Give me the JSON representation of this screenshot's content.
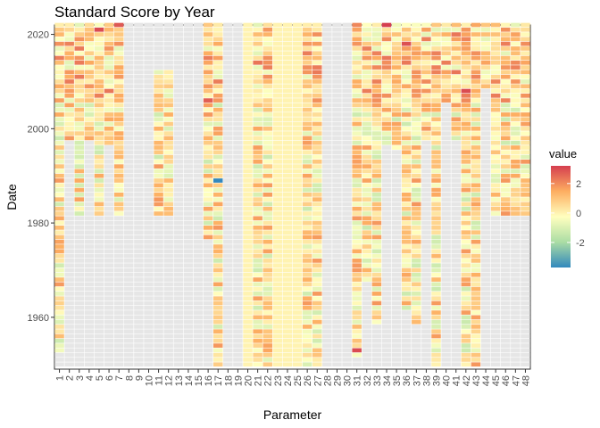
{
  "chart_data": {
    "type": "heatmap",
    "title": "Standard Score by Year",
    "xlabel": "Parameter",
    "ylabel": "Date",
    "x_categories": [
      "1",
      "2",
      "3",
      "4",
      "5",
      "6",
      "7",
      "8",
      "9",
      "10",
      "11",
      "12",
      "13",
      "14",
      "15",
      "16",
      "17",
      "18",
      "19",
      "20",
      "21",
      "22",
      "23",
      "24",
      "25",
      "26",
      "27",
      "28",
      "29",
      "30",
      "31",
      "32",
      "33",
      "34",
      "35",
      "36",
      "37",
      "38",
      "39",
      "40",
      "41",
      "42",
      "43",
      "44",
      "45",
      "46",
      "47",
      "48"
    ],
    "y_ticks": [
      1960,
      1980,
      2000,
      2020
    ],
    "ylim": [
      1949,
      2022
    ],
    "missing_color": "#e6e6e6",
    "colorscale": [
      "#3288bd",
      "#abdda4",
      "#ffffbf",
      "#fdae61",
      "#d53e4f"
    ],
    "colorscale_name": "Spectral (reversed)",
    "value_range": [
      -3.7,
      3.2
    ],
    "legend": {
      "title": "value",
      "ticks": [
        2,
        0,
        -2
      ],
      "position": "right"
    },
    "parameter_coverage": [
      {
        "parameter": "1",
        "start_year": 1953,
        "end_year": 2022
      },
      {
        "parameter": "2",
        "start_year": 1998,
        "end_year": 2022
      },
      {
        "parameter": "3",
        "start_year": 1982,
        "end_year": 2022
      },
      {
        "parameter": "4",
        "start_year": 1998,
        "end_year": 2022
      },
      {
        "parameter": "5",
        "start_year": 1982,
        "end_year": 2022
      },
      {
        "parameter": "6",
        "start_year": 1997,
        "end_year": 2022
      },
      {
        "parameter": "7",
        "start_year": 1982,
        "end_year": 2022
      },
      {
        "parameter": "8",
        "start_year": null,
        "end_year": null
      },
      {
        "parameter": "9",
        "start_year": null,
        "end_year": null
      },
      {
        "parameter": "10",
        "start_year": null,
        "end_year": null
      },
      {
        "parameter": "11",
        "start_year": 1982,
        "end_year": 2012
      },
      {
        "parameter": "12",
        "start_year": 1982,
        "end_year": 2012
      },
      {
        "parameter": "13",
        "start_year": null,
        "end_year": null
      },
      {
        "parameter": "14",
        "start_year": null,
        "end_year": null
      },
      {
        "parameter": "15",
        "start_year": null,
        "end_year": null
      },
      {
        "parameter": "16",
        "start_year": 1977,
        "end_year": 2022
      },
      {
        "parameter": "17",
        "start_year": 1950,
        "end_year": 2022
      },
      {
        "parameter": "18",
        "start_year": null,
        "end_year": null
      },
      {
        "parameter": "19",
        "start_year": null,
        "end_year": null
      },
      {
        "parameter": "20",
        "start_year": 1950,
        "end_year": 2022
      },
      {
        "parameter": "21",
        "start_year": 1950,
        "end_year": 2022
      },
      {
        "parameter": "22",
        "start_year": 1950,
        "end_year": 2022
      },
      {
        "parameter": "23",
        "start_year": 1950,
        "end_year": 2022
      },
      {
        "parameter": "24",
        "start_year": 1950,
        "end_year": 2022
      },
      {
        "parameter": "25",
        "start_year": 1950,
        "end_year": 2022
      },
      {
        "parameter": "26",
        "start_year": 1950,
        "end_year": 2022
      },
      {
        "parameter": "27",
        "start_year": 1950,
        "end_year": 2022
      },
      {
        "parameter": "28",
        "start_year": null,
        "end_year": null
      },
      {
        "parameter": "29",
        "start_year": null,
        "end_year": null
      },
      {
        "parameter": "30",
        "start_year": null,
        "end_year": null
      },
      {
        "parameter": "31",
        "start_year": 1952,
        "end_year": 2022
      },
      {
        "parameter": "32",
        "start_year": 1968,
        "end_year": 2022
      },
      {
        "parameter": "33",
        "start_year": 1959,
        "end_year": 2022
      },
      {
        "parameter": "34",
        "start_year": 1997,
        "end_year": 2022
      },
      {
        "parameter": "35",
        "start_year": 1996,
        "end_year": 2022
      },
      {
        "parameter": "36",
        "start_year": 1962,
        "end_year": 2022
      },
      {
        "parameter": "37",
        "start_year": 1959,
        "end_year": 2022
      },
      {
        "parameter": "38",
        "start_year": 1998,
        "end_year": 2022
      },
      {
        "parameter": "39",
        "start_year": 1950,
        "end_year": 2022
      },
      {
        "parameter": "40",
        "start_year": 2006,
        "end_year": 2022
      },
      {
        "parameter": "41",
        "start_year": 1998,
        "end_year": 2022
      },
      {
        "parameter": "42",
        "start_year": 1950,
        "end_year": 2022
      },
      {
        "parameter": "43",
        "start_year": 1950,
        "end_year": 2022
      },
      {
        "parameter": "44",
        "start_year": 2009,
        "end_year": 2022
      },
      {
        "parameter": "45",
        "start_year": 1982,
        "end_year": 2022
      },
      {
        "parameter": "46",
        "start_year": 1982,
        "end_year": 2022
      },
      {
        "parameter": "47",
        "start_year": 1982,
        "end_year": 2022
      },
      {
        "parameter": "48",
        "start_year": 1982,
        "end_year": 2022
      }
    ],
    "highlights": [
      {
        "parameter": "5",
        "year": 2021,
        "value": 3.0
      },
      {
        "parameter": "7",
        "year": 2022,
        "value": 2.8
      },
      {
        "parameter": "17",
        "year": 1989,
        "value": -3.7
      },
      {
        "parameter": "34",
        "year": 2022,
        "value": 3.2
      },
      {
        "parameter": "36",
        "year": 2018,
        "value": 2.9
      },
      {
        "parameter": "31",
        "year": 1953,
        "value": 3.0
      },
      {
        "parameter": "16",
        "year": 2006,
        "value": 2.7
      },
      {
        "parameter": "42",
        "year": 2008,
        "value": 3.0
      }
    ]
  }
}
